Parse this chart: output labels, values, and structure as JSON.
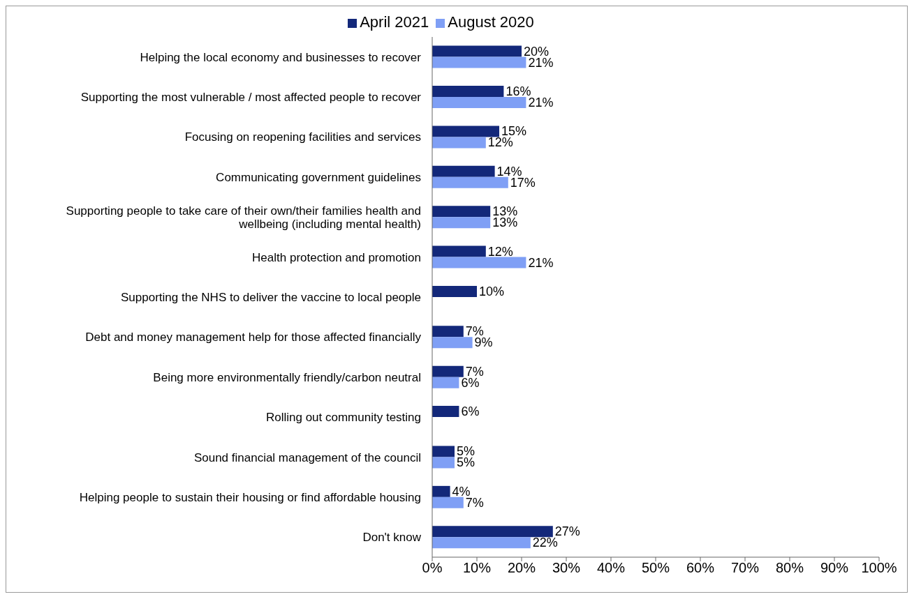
{
  "chart_data": {
    "type": "bar",
    "orientation": "horizontal",
    "categories": [
      "Helping the local economy and businesses to recover",
      "Supporting the most vulnerable / most affected people to recover",
      "Focusing on reopening facilities and services",
      "Communicating government guidelines",
      "Supporting people to take care of their own/their families health and wellbeing (including mental health)",
      "Health protection and promotion",
      "Supporting the NHS to deliver the vaccine to local people",
      "Debt and money management help for those affected financially",
      "Being more environmentally friendly/carbon neutral",
      "Rolling out community testing",
      "Sound financial management of the council",
      "Helping people to sustain their housing or find affordable housing",
      "Don't know"
    ],
    "series": [
      {
        "name": "April 2021",
        "color": "#13287a",
        "values": [
          20,
          16,
          15,
          14,
          13,
          12,
          10,
          7,
          7,
          6,
          5,
          4,
          27
        ],
        "value_labels": [
          "20%",
          "16%",
          "15%",
          "14%",
          "13%",
          "12%",
          "10%",
          "7%",
          "7%",
          "6%",
          "5%",
          "4%",
          "27%"
        ]
      },
      {
        "name": "August 2020",
        "color": "#7f9ff5",
        "values": [
          21,
          21,
          12,
          17,
          13,
          21,
          null,
          9,
          6,
          null,
          5,
          7,
          22
        ],
        "value_labels": [
          "21%",
          "21%",
          "12%",
          "17%",
          "13%",
          "21%",
          null,
          "9%",
          "6%",
          null,
          "5%",
          "7%",
          "22%"
        ]
      }
    ],
    "xlim": [
      0,
      100
    ],
    "xticks": [
      {
        "value": 0,
        "label": "0%"
      },
      {
        "value": 10,
        "label": "10%"
      },
      {
        "value": 20,
        "label": "20%"
      },
      {
        "value": 30,
        "label": "30%"
      },
      {
        "value": 40,
        "label": "40%"
      },
      {
        "value": 50,
        "label": "50%"
      },
      {
        "value": 60,
        "label": "60%"
      },
      {
        "value": 70,
        "label": "70%"
      },
      {
        "value": 80,
        "label": "80%"
      },
      {
        "value": 90,
        "label": "90%"
      },
      {
        "value": 100,
        "label": "100%"
      }
    ],
    "grid": false,
    "legend": "top"
  }
}
